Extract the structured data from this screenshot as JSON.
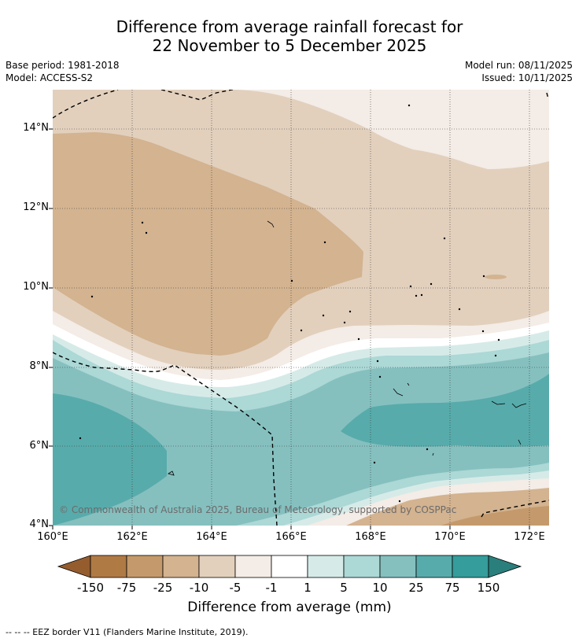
{
  "title": {
    "line1": "Difference from average rainfall forecast for",
    "line2": "22 November to 5 December 2025"
  },
  "info": {
    "base_period": "Base period: 1981-2018",
    "model": "Model: ACCESS-S2",
    "model_run": "Model run: 08/11/2025",
    "issued": "Issued: 10/11/2025"
  },
  "map": {
    "lat_labels": [
      "14°N",
      "12°N",
      "10°N",
      "8°N",
      "6°N",
      "4°N"
    ],
    "lon_labels": [
      "160°E",
      "162°E",
      "164°E",
      "166°E",
      "168°E",
      "170°E",
      "172°E"
    ],
    "copyright": "© Commonwealth of Australia 2025, Bureau of Meteorology, supported by COSPPac"
  },
  "colorbar": {
    "title": "Difference from average (mm)",
    "labels": [
      "-150",
      "-75",
      "-25",
      "-10",
      "-5",
      "-1",
      "1",
      "5",
      "10",
      "25",
      "75",
      "150"
    ],
    "colors": {
      "lt150": "#955c2e",
      "b1": "#b07a45",
      "b2": "#c49a6c",
      "b3": "#d3b390",
      "b4": "#e2d0bd",
      "b5": "#f4ece6",
      "b6": "#ffffff",
      "b7": "#d6ebe8",
      "b8": "#acd8d6",
      "b9": "#85c0bf",
      "b10": "#58abab",
      "b11": "#359d9b",
      "gt150": "#2a7f7c"
    }
  },
  "footer": {
    "legend": "--  --  -- EEZ border V11 (Flanders Marine Institute, 2019)."
  }
}
